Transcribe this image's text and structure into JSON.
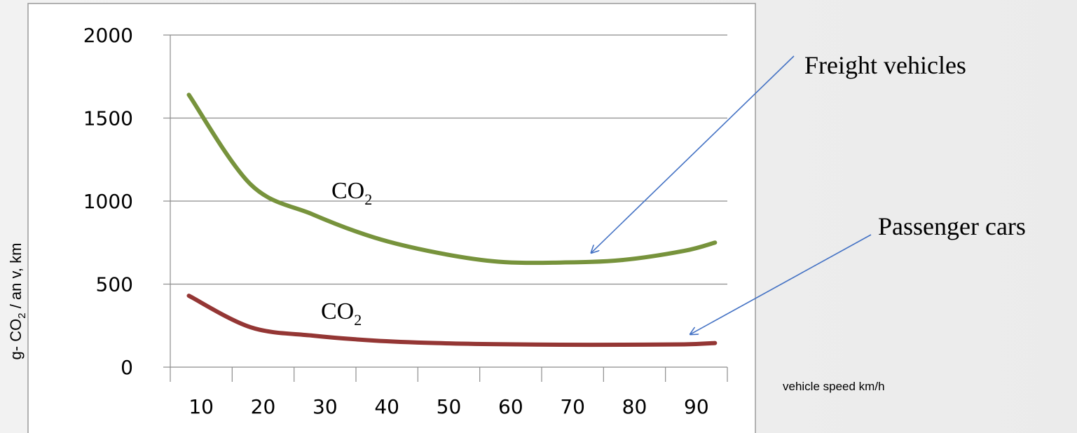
{
  "chart_data": {
    "type": "line",
    "x": [
      3,
      13,
      23,
      33,
      43,
      53,
      63,
      73,
      83,
      88
    ],
    "xticks": [
      "10",
      "20",
      "30",
      "40",
      "50",
      "60",
      "70",
      "80",
      "90"
    ],
    "xtick_values": [
      10,
      20,
      30,
      40,
      50,
      60,
      70,
      80,
      90
    ],
    "xlim": [
      0,
      90
    ],
    "ylim": [
      0,
      2000
    ],
    "yticks": [
      "0",
      "500",
      "1000",
      "1500",
      "2000"
    ],
    "ytick_values": [
      0,
      500,
      1000,
      1500,
      2000
    ],
    "xlabel": "vehicle speed km/h",
    "ylabel": "g- CO2 / an v, km",
    "ylabel_parts": {
      "pre": "g- CO",
      "sub": "2",
      "post": " / an v, km"
    },
    "grid": "horizontal",
    "series": [
      {
        "name": "Freight vehicles",
        "color": "#77933c",
        "values": [
          1640,
          1100,
          920,
          780,
          690,
          635,
          630,
          645,
          700,
          750
        ]
      },
      {
        "name": "Passenger cars",
        "color": "#943634",
        "values": [
          430,
          240,
          190,
          160,
          145,
          138,
          135,
          135,
          137,
          145
        ]
      }
    ],
    "series_labels": [
      {
        "text": "CO",
        "sub": "2"
      },
      {
        "text": "CO",
        "sub": "2"
      }
    ],
    "annotations": [
      {
        "text": "Freight vehicles",
        "target_series": 0,
        "target_x": 68,
        "arrow_color": "#4472c4"
      },
      {
        "text": "Passenger cars",
        "target_series": 1,
        "target_x": 84,
        "arrow_color": "#4472c4"
      }
    ]
  }
}
